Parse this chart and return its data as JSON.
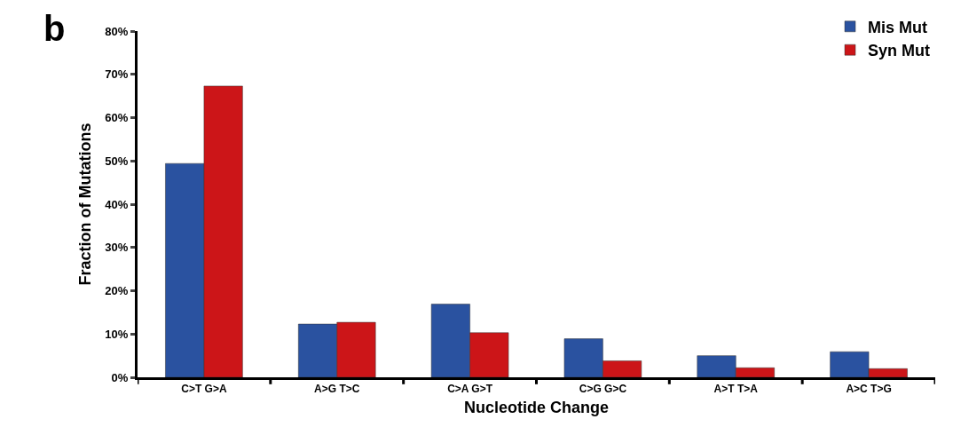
{
  "chart_data": {
    "type": "bar",
    "xlabel": "Nucleotide Change",
    "ylabel": "Fraction of Mutations",
    "annotations": [
      "b"
    ],
    "categories": [
      "C>T G>A",
      "A>G T>C",
      "C>A G>T",
      "C>G G>C",
      "A>T T>A",
      "A>C T>G"
    ],
    "series": [
      {
        "name": "Mis Mut",
        "color": "#2a52a0",
        "values": [
          49.4,
          12.3,
          16.9,
          8.9,
          5.0,
          5.9
        ]
      },
      {
        "name": "Syn Mut",
        "color": "#cc1518",
        "values": [
          67.3,
          12.7,
          10.3,
          3.8,
          2.2,
          2.0
        ]
      }
    ],
    "ylim": [
      0,
      80
    ],
    "yticks": [
      {
        "value": 0,
        "label": "0%"
      },
      {
        "value": 10,
        "label": "10%"
      },
      {
        "value": 20,
        "label": "20%"
      },
      {
        "value": 30,
        "label": "30%"
      },
      {
        "value": 40,
        "label": "40%"
      },
      {
        "value": 50,
        "label": "50%"
      },
      {
        "value": 60,
        "label": "60%"
      },
      {
        "value": 70,
        "label": "70%"
      },
      {
        "value": 80,
        "label": "80%"
      }
    ],
    "grid": false,
    "legend": "top right"
  }
}
